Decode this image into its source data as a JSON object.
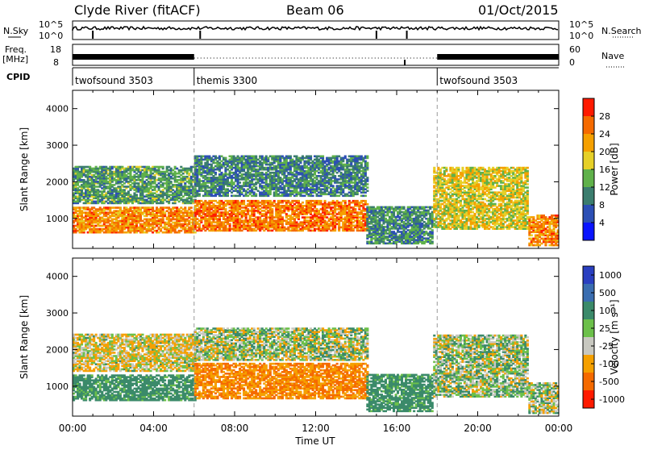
{
  "header": {
    "radar": "Clyde River (fitACF)",
    "beam": "Beam 06",
    "date": "01/Oct/2015"
  },
  "noise_panel": {
    "left_label": "N.Sky",
    "right_label": "N.Search",
    "left_ticks": [
      "10^5",
      "10^0"
    ],
    "right_ticks": [
      "10^5",
      "10^0"
    ]
  },
  "freq_panel": {
    "left_label_1": "Freq.",
    "left_label_2": "[MHz]",
    "right_label": "Nave",
    "left_ticks": [
      "18",
      "8"
    ],
    "right_ticks": [
      "60",
      "0"
    ]
  },
  "cpid": {
    "label": "CPID",
    "segments": [
      {
        "name": "twofsound 3503",
        "start": 0,
        "end": 6
      },
      {
        "name": "themis 3300",
        "start": 6,
        "end": 18
      },
      {
        "name": "twofsound 3503",
        "start": 18,
        "end": 24
      }
    ]
  },
  "chart_data": [
    {
      "type": "heatmap",
      "title": "",
      "xlabel": "Time UT",
      "ylabel": "Slant Range [km]",
      "xlim": [
        0,
        24
      ],
      "ylim": [
        180,
        4500
      ],
      "x_ticks": [
        "00:00",
        "04:00",
        "08:00",
        "12:00",
        "16:00",
        "20:00",
        "00:00"
      ],
      "y_ticks": [
        1000,
        2000,
        3000,
        4000
      ],
      "colorbar": {
        "label": "Power [dB]",
        "ticks": [
          "4",
          "8",
          "12",
          "16",
          "20",
          "24",
          "28"
        ],
        "colors": [
          "#0a14ff",
          "#2c4fb5",
          "#3b7d6e",
          "#5fb14a",
          "#e6d028",
          "#f5a000",
          "#f56a00",
          "#ff1a00"
        ]
      },
      "bands": [
        {
          "t0": 0.0,
          "t1": 6.0,
          "r0": 600,
          "r1": 1300,
          "value": 26
        },
        {
          "t0": 0.0,
          "t1": 6.0,
          "r0": 1400,
          "r1": 2400,
          "value": 14
        },
        {
          "t0": 6.0,
          "t1": 14.5,
          "r0": 650,
          "r1": 1500,
          "value": 27
        },
        {
          "t0": 6.0,
          "t1": 14.5,
          "r0": 1600,
          "r1": 2700,
          "value": 12
        },
        {
          "t0": 14.5,
          "t1": 17.8,
          "r0": 300,
          "r1": 1300,
          "value": 13
        },
        {
          "t0": 17.8,
          "t1": 22.5,
          "r0": 700,
          "r1": 2400,
          "value": 20
        },
        {
          "t0": 22.5,
          "t1": 24.0,
          "r0": 250,
          "r1": 1100,
          "value": 26
        }
      ]
    },
    {
      "type": "heatmap",
      "title": "",
      "xlabel": "Time UT",
      "ylabel": "Slant Range [km]",
      "xlim": [
        0,
        24
      ],
      "ylim": [
        180,
        4500
      ],
      "x_ticks": [
        "00:00",
        "04:00",
        "08:00",
        "12:00",
        "16:00",
        "20:00",
        "00:00"
      ],
      "y_ticks": [
        1000,
        2000,
        3000,
        4000
      ],
      "colorbar": {
        "label": "Velocity [m s⁻¹]",
        "ticks": [
          "1000",
          "500",
          "100",
          "25",
          "-25",
          "-100",
          "-500",
          "-1000"
        ],
        "colors": [
          "#2a3fc0",
          "#3a6db0",
          "#3b8a6a",
          "#6cc04a",
          "#c8c8c0",
          "#f5a000",
          "#f56a00",
          "#ff1a00"
        ]
      },
      "bands": [
        {
          "t0": 0.0,
          "t1": 6.0,
          "r0": 600,
          "r1": 1300,
          "value": 150
        },
        {
          "t0": 0.0,
          "t1": 6.0,
          "r0": 1400,
          "r1": 2400,
          "value": -60
        },
        {
          "t0": 6.0,
          "t1": 14.5,
          "r0": 650,
          "r1": 1600,
          "value": -300
        },
        {
          "t0": 6.0,
          "t1": 14.5,
          "r0": 1700,
          "r1": 2600,
          "value": 0
        },
        {
          "t0": 14.5,
          "t1": 17.8,
          "r0": 300,
          "r1": 1300,
          "value": 150
        },
        {
          "t0": 17.8,
          "t1": 22.5,
          "r0": 700,
          "r1": 2400,
          "value": 20
        },
        {
          "t0": 22.5,
          "t1": 24.0,
          "r0": 250,
          "r1": 1100,
          "value": 0
        }
      ]
    }
  ]
}
